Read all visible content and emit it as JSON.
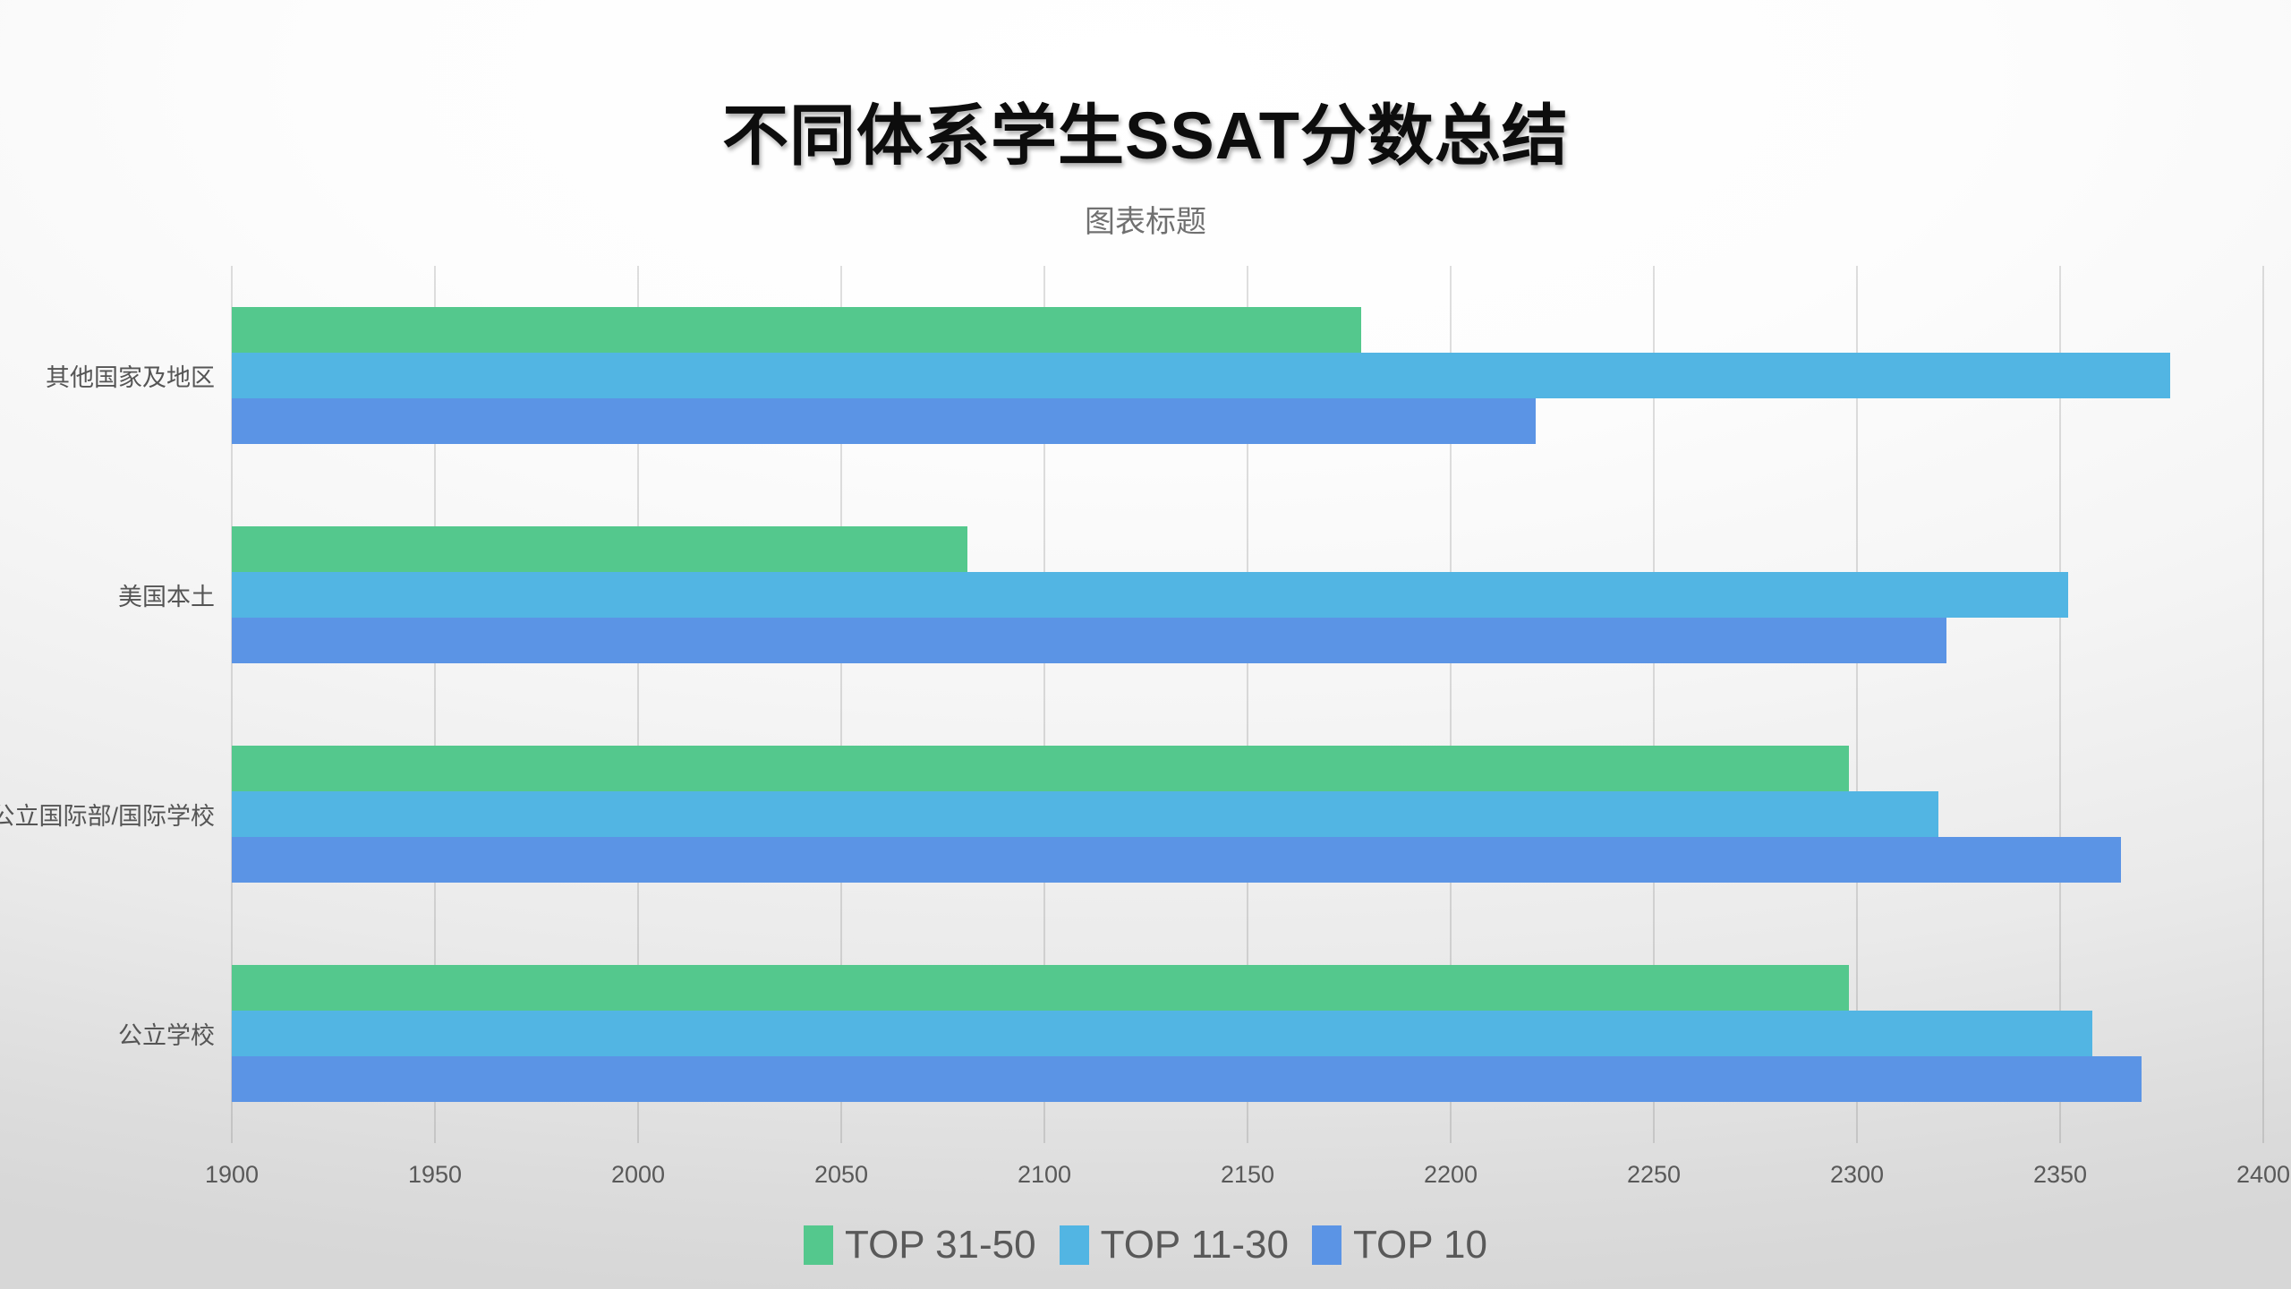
{
  "chart_data": {
    "type": "bar",
    "orientation": "horizontal",
    "title": "不同体系学生SSAT分数总结",
    "subtitle": "图表标题",
    "categories": [
      "其他国家及地区",
      "美国本土",
      "公立国际部/国际学校",
      "公立学校"
    ],
    "series": [
      {
        "name": "TOP 31-50",
        "color": "#54c88d",
        "values": [
          2178,
          2081,
          2298,
          2298
        ]
      },
      {
        "name": "TOP 11-30",
        "color": "#52b5e3",
        "values": [
          2377,
          2352,
          2320,
          2358
        ]
      },
      {
        "name": "TOP 10",
        "color": "#5b94e5",
        "values": [
          2221,
          2322,
          2365,
          2370
        ]
      }
    ],
    "xlim": [
      1900,
      2400
    ],
    "x_ticks": [
      1900,
      1950,
      2000,
      2050,
      2100,
      2150,
      2200,
      2250,
      2300,
      2350,
      2400
    ],
    "grid": "vertical-only",
    "legend_position": "bottom",
    "colors": {
      "grid_line": "#d2d2d2",
      "tick_text": "#595959",
      "category_text": "#555555",
      "legend_text": "#595959",
      "title_text": "#0d0d0d",
      "subtitle_text": "#707070",
      "background_top": "#ffffff",
      "background_bottom": "#d7d7d7"
    }
  }
}
